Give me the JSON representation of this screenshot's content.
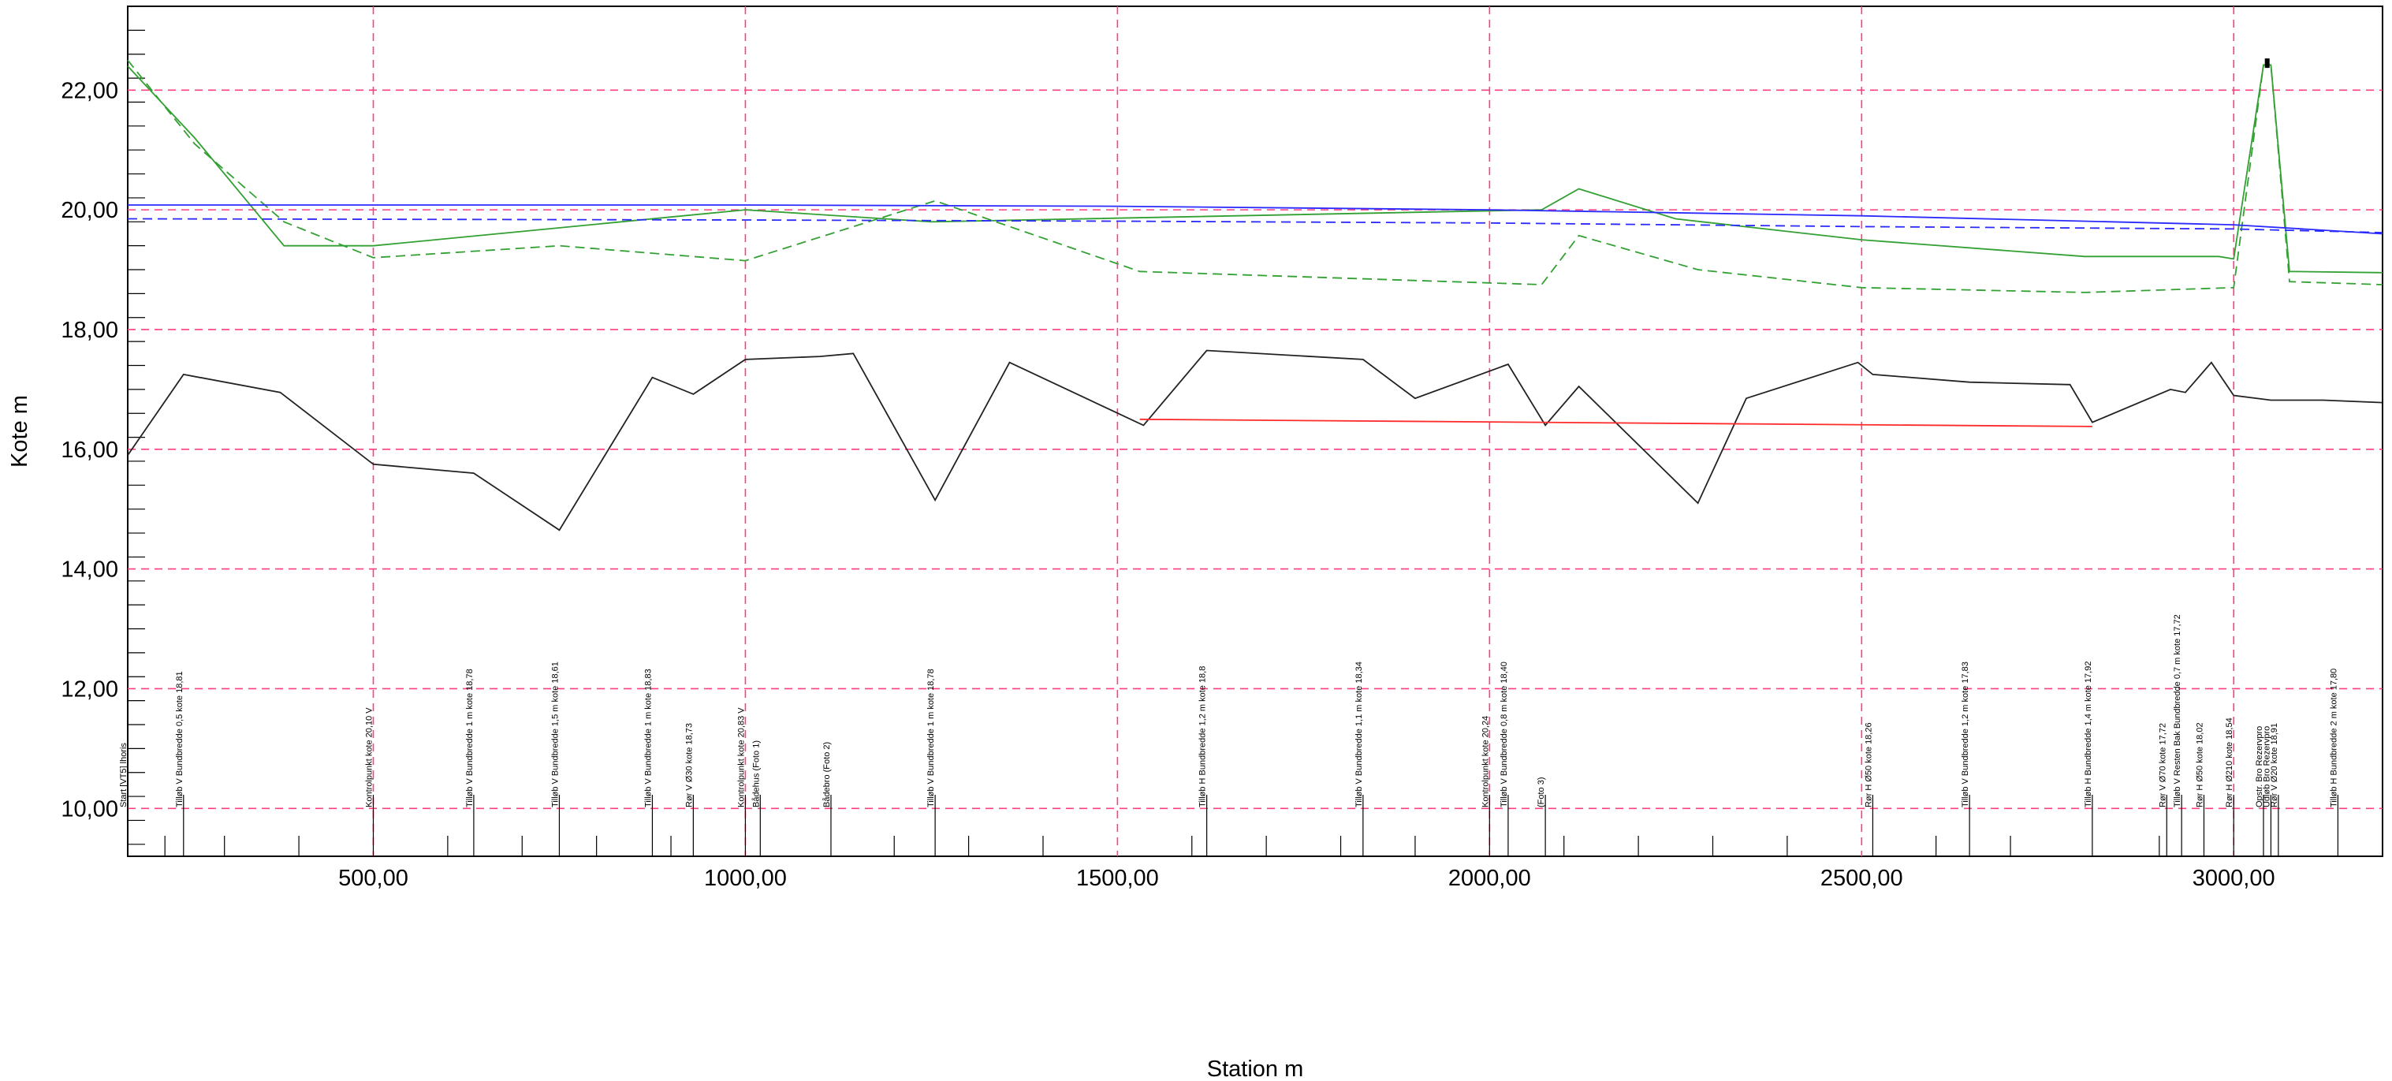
{
  "chart_data": {
    "type": "line",
    "xlabel": "Station m",
    "ylabel": "Kote m",
    "xlim": [
      170,
      3200
    ],
    "ylim": [
      9.2,
      23.4
    ],
    "xticks": [
      500,
      1000,
      1500,
      2000,
      2500,
      3000
    ],
    "xtick_labels": [
      "500,00",
      "1000,00",
      "1500,00",
      "2000,00",
      "2500,00",
      "3000,00"
    ],
    "yticks": [
      10,
      12,
      14,
      16,
      18,
      20,
      22
    ],
    "ytick_labels": [
      "10,00",
      "12,00",
      "14,00",
      "16,00",
      "18,00",
      "20,00",
      "22,00"
    ],
    "grid": "dashed pink at major ticks",
    "legend": "none",
    "colors": {
      "grid": "#ff3f7f",
      "bottom": "#222222",
      "bank": "#33a033",
      "water": "#2a2aff",
      "red_line": "#ff2a2a",
      "marker": "#000000"
    },
    "series": [
      {
        "style": "solid",
        "color": "#222222",
        "x": [
          170,
          245,
          375,
          500,
          635,
          750,
          875,
          930,
          1000,
          1100,
          1145,
          1255,
          1355,
          1535,
          1620,
          1830,
          1900,
          2025,
          2075,
          2120,
          2280,
          2345,
          2495,
          2515,
          2645,
          2780,
          2810,
          2915,
          2935,
          2970,
          3000,
          3050,
          3120,
          3200
        ],
        "y": [
          15.9,
          17.25,
          16.95,
          15.75,
          15.6,
          14.65,
          17.2,
          16.92,
          17.5,
          17.55,
          17.6,
          15.15,
          17.45,
          16.4,
          17.65,
          17.5,
          16.85,
          17.42,
          16.4,
          17.05,
          15.1,
          16.85,
          17.45,
          17.25,
          17.12,
          17.08,
          16.45,
          17.0,
          16.95,
          17.45,
          16.9,
          16.82,
          16.82,
          16.78
        ]
      },
      {
        "style": "solid",
        "color": "#33a033",
        "x": [
          170,
          260,
          380,
          500,
          1000,
          1250,
          2070,
          2120,
          2250,
          2500,
          2800,
          2980,
          3000,
          3040,
          3050,
          3075,
          3200
        ],
        "y": [
          22.4,
          21.2,
          19.4,
          19.4,
          20.0,
          19.8,
          20.0,
          20.35,
          19.85,
          19.5,
          19.22,
          19.22,
          19.18,
          22.42,
          22.42,
          18.97,
          18.95
        ]
      },
      {
        "style": "dashed",
        "color": "#33a033",
        "x": [
          170,
          260,
          380,
          500,
          750,
          1000,
          1255,
          1530,
          2070,
          2120,
          2280,
          2500,
          2800,
          3000,
          3040,
          3050,
          3075,
          3200
        ],
        "y": [
          22.5,
          21.1,
          19.8,
          19.2,
          19.4,
          19.15,
          20.15,
          18.97,
          18.75,
          19.57,
          19.0,
          18.7,
          18.62,
          18.7,
          22.42,
          22.42,
          18.8,
          18.75
        ]
      },
      {
        "style": "solid",
        "color": "#2a2aff",
        "x": [
          170,
          1000,
          1500,
          2000,
          2500,
          3000,
          3200
        ],
        "y": [
          20.08,
          20.08,
          20.06,
          20.0,
          19.9,
          19.75,
          19.6
        ]
      },
      {
        "style": "dashed",
        "color": "#2a2aff",
        "x": [
          170,
          1000,
          1500,
          2000,
          2500,
          3000,
          3200
        ],
        "y": [
          19.85,
          19.83,
          19.81,
          19.78,
          19.72,
          19.68,
          19.62
        ]
      },
      {
        "style": "solid",
        "color": "#ff2a2a",
        "x": [
          1530,
          2810
        ],
        "y": [
          16.5,
          16.38
        ]
      }
    ],
    "marker": {
      "x": 3045,
      "y": 22.45
    },
    "station_ticks": [
      220,
      300,
      400,
      600,
      700,
      800,
      900,
      1200,
      1300,
      1400,
      1600,
      1700,
      1800,
      1900,
      2100,
      2200,
      2300,
      2400,
      2600,
      2700,
      2900
    ],
    "annotations": [
      {
        "x": 170,
        "text": "Start [VT5] lhoris"
      },
      {
        "x": 245,
        "text": "Tilløb V Bundbredde 0,5 kote 18,81"
      },
      {
        "x": 500,
        "text": "Kontrolpunkt kote 20,10 V"
      },
      {
        "x": 635,
        "text": "Tilløb V Bundbredde 1 m kote 18,78"
      },
      {
        "x": 750,
        "text": "Tilløb V Bundbredde 1,5 m kote 18,61"
      },
      {
        "x": 875,
        "text": "Tilløb V Bundbredde 1 m kote 18,83"
      },
      {
        "x": 930,
        "text": "Rør V Ø30 kote 18,73"
      },
      {
        "x": 1000,
        "text": "Kontrolpunkt kote 20,83 V"
      },
      {
        "x": 1020,
        "text": "Bådehus (Foto 1)"
      },
      {
        "x": 1115,
        "text": "Bådebro (Foto 2)"
      },
      {
        "x": 1255,
        "text": "Tilløb V Bundbredde 1 m kote 18,78"
      },
      {
        "x": 1620,
        "text": "Tilløb H Bundbredde 1,2 m kote 18,8"
      },
      {
        "x": 1830,
        "text": "Tilløb V Bundbredde 1,1 m kote 18,34"
      },
      {
        "x": 2000,
        "text": "Kontrolpunkt kote 20,24"
      },
      {
        "x": 2025,
        "text": "Tilløb V Bundbredde 0,8 m kote 18,40"
      },
      {
        "x": 2075,
        "text": "(Foto 3)"
      },
      {
        "x": 2515,
        "text": "Rør H Ø50 kote 18,26"
      },
      {
        "x": 2645,
        "text": "Tilløb V Bundbredde 1,2 m kote 17,83"
      },
      {
        "x": 2810,
        "text": "Tilløb H Bundbredde 1,4 m kote 17,92"
      },
      {
        "x": 2910,
        "text": "Rør V Ø70 kote 17,72"
      },
      {
        "x": 2930,
        "text": "Tilløb V Resten Bak Bundbredde 0,7 m kote 17,72"
      },
      {
        "x": 2960,
        "text": "Rør H Ø50 kote 18,02"
      },
      {
        "x": 3000,
        "text": "Rør H Ø210 kote 18,54"
      },
      {
        "x": 3040,
        "text": "Opstr. Bro Rezervpro"
      },
      {
        "x": 3050,
        "text": "Udløb Bro Rezervpro"
      },
      {
        "x": 3060,
        "text": "Rør V Ø20 kote 18,91"
      },
      {
        "x": 3140,
        "text": "Tilløb H Bundbredde 2 m kote 17,80"
      }
    ]
  }
}
